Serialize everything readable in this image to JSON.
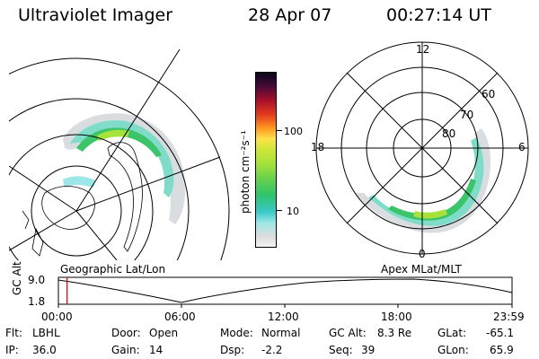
{
  "header": {
    "title": "Ultraviolet Imager",
    "date": "28 Apr 07",
    "time": "00:27:14 UT"
  },
  "colorbar": {
    "unit_label": "photon cm⁻²s⁻¹",
    "tick_labels": [
      "100",
      "10"
    ]
  },
  "apex_map": {
    "label": "Apex MLat/MLT",
    "mlt_labels": [
      "12",
      "18",
      "6",
      "0"
    ],
    "mlat_labels": [
      "60",
      "70",
      "80"
    ]
  },
  "geo_map": {
    "label": "Geographic Lat/Lon"
  },
  "altitude_plot": {
    "ylabel": "GC Alt",
    "y_ticks": [
      "9.0",
      "1.8"
    ],
    "x_ticks": [
      "00:00",
      "06:00",
      "12:00",
      "18:00",
      "23:59"
    ],
    "current_time_fraction": 0.019
  },
  "status": {
    "flt_label": "Flt:",
    "flt_value": "LBHL",
    "ip_label": "IP:",
    "ip_value": "36.0",
    "door_label": "Door:",
    "door_value": "Open",
    "gain_label": "Gain:",
    "gain_value": "14",
    "mode_label": "Mode:",
    "mode_value": "Normal",
    "dsp_label": "Dsp:",
    "dsp_value": "-2.2",
    "gcalt_label": "GC Alt:",
    "gcalt_value": "8.3 Re",
    "seq_label": "Seq:",
    "seq_value": "39",
    "glat_label": "GLat:",
    "glat_value": "-65.1",
    "glon_label": "GLon:",
    "glon_value": "65.9"
  }
}
